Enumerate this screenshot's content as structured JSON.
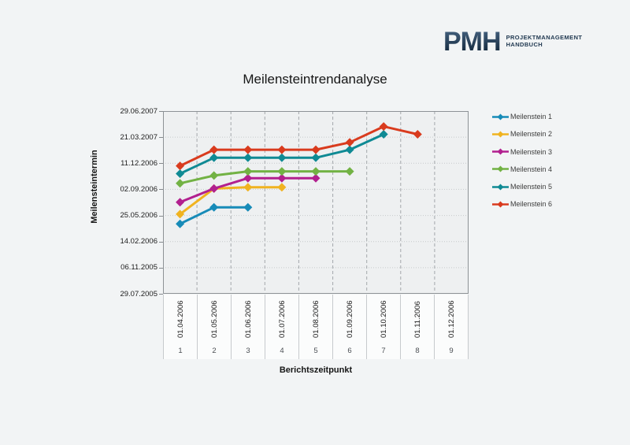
{
  "logo": {
    "word": "PMH",
    "line1": "PROJEKTMANAGEMENT",
    "line2": "HANDBUCH",
    "color": "#223a52"
  },
  "colors": {
    "page_bg": "#f2f4f5",
    "plot_bg": "#eef0f1",
    "cell_bg": "#fbfcfc",
    "grid_dotted": "#c6c9cb",
    "grid_dashed": "#a3a7ab",
    "plot_border": "#8d9296",
    "text_dark": "#1c1c1c",
    "text_gray": "#4b4f54"
  },
  "chart_data": {
    "type": "line",
    "title": "Meilensteintrendanalyse",
    "xlabel": "Berichtszeitpunkt",
    "ylabel": "Meilensteintermin",
    "legend_position": "right",
    "grid": true,
    "y_min": "29.07.2005",
    "y_max": "29.06.2007",
    "y_ticks": [
      "29.06.2007",
      "21.03.2007",
      "11.12.2006",
      "02.09.2006",
      "25.05.2006",
      "14.02.2006",
      "06.11.2005",
      "29.07.2005"
    ],
    "x_dates": [
      "01.04.2006",
      "01.05.2006",
      "01.06.2006",
      "01.07.2006",
      "01.08.2006",
      "01.09.2006",
      "01.10.2006",
      "01.11.2006",
      "01.12.2006"
    ],
    "x_numbers": [
      "1",
      "2",
      "3",
      "4",
      "5",
      "6",
      "7",
      "8",
      "9"
    ],
    "series": [
      {
        "name": "Meilenstein 1",
        "color": "#178bb8",
        "values": [
          "23.04.2006",
          "25.06.2006",
          "25.06.2006"
        ]
      },
      {
        "name": "Meilenstein 2",
        "color": "#f0b320",
        "values": [
          "30.05.2006",
          "05.09.2006",
          "10.09.2006",
          "10.09.2006"
        ]
      },
      {
        "name": "Meilenstein 3",
        "color": "#b2208f",
        "values": [
          "15.07.2006",
          "05.09.2006",
          "15.10.2006",
          "15.10.2006",
          "15.10.2006"
        ]
      },
      {
        "name": "Meilenstein 4",
        "color": "#72b244",
        "values": [
          "25.09.2006",
          "25.10.2006",
          "10.11.2006",
          "10.11.2006",
          "10.11.2006",
          "10.11.2006"
        ]
      },
      {
        "name": "Meilenstein 5",
        "color": "#0f8a94",
        "values": [
          "01.11.2006",
          "01.01.2007",
          "01.01.2007",
          "01.01.2007",
          "01.01.2007",
          "01.02.2007",
          "01.04.2007"
        ]
      },
      {
        "name": "Meilenstein 6",
        "color": "#d93b1e",
        "values": [
          "01.12.2006",
          "01.02.2007",
          "01.02.2007",
          "01.02.2007",
          "01.02.2007",
          "01.03.2007",
          "01.05.2007",
          "01.04.2007"
        ]
      }
    ]
  }
}
